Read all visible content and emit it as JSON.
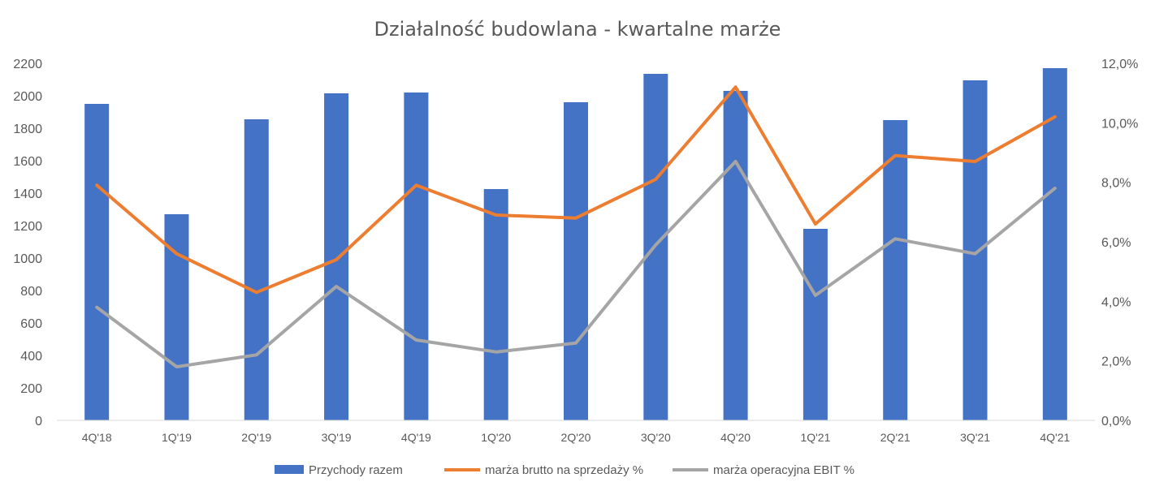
{
  "chart_data": {
    "type": "bar",
    "title": "Działalność budowlana - kwartalne marże",
    "categories": [
      "4Q'18",
      "1Q'19",
      "2Q'19",
      "3Q'19",
      "4Q'19",
      "1Q'20",
      "2Q'20",
      "3Q'20",
      "4Q'20",
      "1Q'21",
      "2Q'21",
      "3Q'21",
      "4Q'21"
    ],
    "y_left": {
      "min": 0,
      "max": 2200,
      "step": 200,
      "tick_labels": [
        "0",
        "200",
        "400",
        "600",
        "800",
        "1000",
        "1200",
        "1400",
        "1600",
        "1800",
        "2000",
        "2200"
      ]
    },
    "y_right": {
      "min": 0,
      "max": 12,
      "step": 2,
      "tick_labels": [
        "0,0%",
        "2,0%",
        "4,0%",
        "6,0%",
        "8,0%",
        "10,0%",
        "12,0%"
      ]
    },
    "grid": false,
    "legend_position": "bottom",
    "series": [
      {
        "name": "Przychody razem",
        "type": "bar",
        "axis": "left",
        "color": "#4472C4",
        "values": [
          1950,
          1270,
          1855,
          2015,
          2020,
          1425,
          1960,
          2135,
          2030,
          1180,
          1850,
          2095,
          2170
        ]
      },
      {
        "name": "marża brutto na sprzedaży %",
        "type": "line",
        "axis": "right",
        "color": "#ED7D31",
        "values": [
          7.9,
          5.6,
          4.3,
          5.4,
          7.9,
          6.9,
          6.8,
          8.1,
          11.2,
          6.6,
          8.9,
          8.7,
          10.2
        ]
      },
      {
        "name": "marża operacyjna EBIT %",
        "type": "line",
        "axis": "right",
        "color": "#A5A5A5",
        "values": [
          3.8,
          1.8,
          2.2,
          4.5,
          2.7,
          2.3,
          2.6,
          5.9,
          8.7,
          4.2,
          6.1,
          5.6,
          7.8
        ]
      }
    ]
  }
}
